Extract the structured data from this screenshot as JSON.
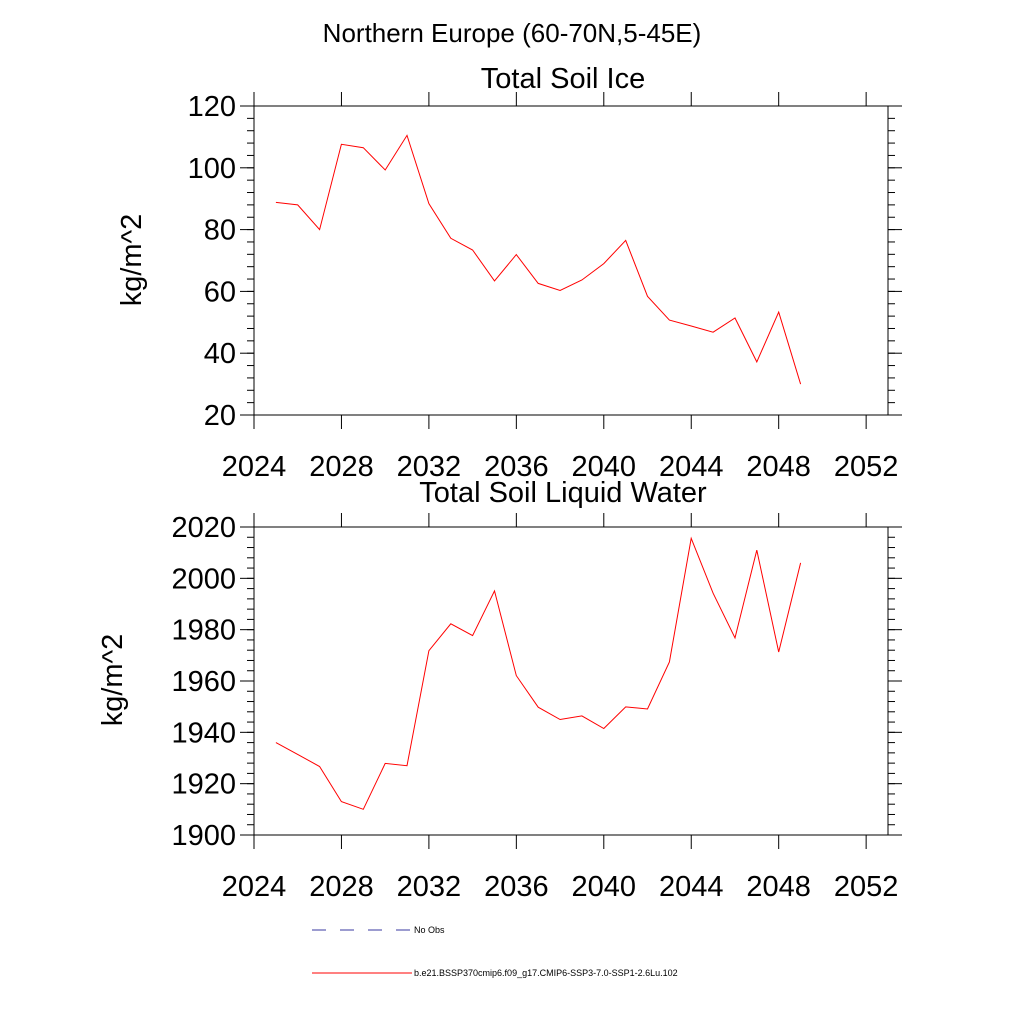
{
  "suptitle": "Northern Europe (60-70N,5-45E)",
  "chart_data": [
    {
      "type": "line",
      "title": "Total Soil Ice",
      "xlabel": "",
      "ylabel": "kg/m^2",
      "xlim": [
        2024,
        2053
      ],
      "ylim": [
        20,
        120
      ],
      "xticks": [
        2024,
        2028,
        2032,
        2036,
        2040,
        2044,
        2048,
        2052
      ],
      "yticks": [
        20,
        40,
        60,
        80,
        100,
        120
      ],
      "xtick_labels": [
        "2024",
        "2028",
        "2032",
        "2036",
        "2040",
        "2044",
        "2048",
        "2052"
      ],
      "ytick_labels": [
        "20",
        "40",
        "60",
        "80",
        "100",
        "120"
      ],
      "grid": false,
      "series": [
        {
          "color": "#ff0000",
          "x": [
            2025,
            2026,
            2027,
            2028,
            2029,
            2030,
            2031,
            2032,
            2033,
            2034,
            2035,
            2036,
            2037,
            2038,
            2039,
            2040,
            2041,
            2042,
            2043,
            2044,
            2045,
            2046,
            2047,
            2048,
            2049
          ],
          "values": [
            88.8,
            88.0,
            80.0,
            107.6,
            106.5,
            99.3,
            110.5,
            88.4,
            77.2,
            73.4,
            63.4,
            71.9,
            62.6,
            60.3,
            63.7,
            69.0,
            76.5,
            58.4,
            50.7,
            48.8,
            46.8,
            51.4,
            37.2,
            53.3,
            30.0
          ]
        }
      ]
    },
    {
      "type": "line",
      "title": "Total Soil Liquid Water",
      "xlabel": "",
      "ylabel": "kg/m^2",
      "xlim": [
        2024,
        2053
      ],
      "ylim": [
        1900,
        2020
      ],
      "xticks": [
        2024,
        2028,
        2032,
        2036,
        2040,
        2044,
        2048,
        2052
      ],
      "yticks": [
        1900,
        1920,
        1940,
        1960,
        1980,
        2000,
        2020
      ],
      "xtick_labels": [
        "2024",
        "2028",
        "2032",
        "2036",
        "2040",
        "2044",
        "2048",
        "2052"
      ],
      "ytick_labels": [
        "1900",
        "1920",
        "1940",
        "1960",
        "1980",
        "2000",
        "2020"
      ],
      "grid": false,
      "series": [
        {
          "color": "#ff0000",
          "x": [
            2025,
            2026,
            2027,
            2028,
            2029,
            2030,
            2031,
            2032,
            2033,
            2034,
            2035,
            2036,
            2037,
            2038,
            2039,
            2040,
            2041,
            2042,
            2043,
            2044,
            2045,
            2046,
            2047,
            2048,
            2049
          ],
          "values": [
            1936.0,
            1931.4,
            1926.7,
            1913.0,
            1910.0,
            1927.9,
            1927.0,
            1971.8,
            1982.3,
            1977.7,
            1995.1,
            1962.1,
            1949.8,
            1945.0,
            1946.4,
            1941.5,
            1949.9,
            1949.1,
            1967.4,
            2015.6,
            1994.2,
            1976.8,
            2011.0,
            1971.3,
            2006.0
          ]
        }
      ]
    }
  ],
  "legend": {
    "placement": "bottom",
    "items": [
      {
        "label": "No Obs",
        "color": "#3a3aa0",
        "style": "dashed"
      },
      {
        "label": "b.e21.BSSP370cmip6.f09_g17.CMIP6-SSP3-7.0-SSP1-2.6Lu.102",
        "color": "#ff0000",
        "style": "solid"
      }
    ]
  }
}
